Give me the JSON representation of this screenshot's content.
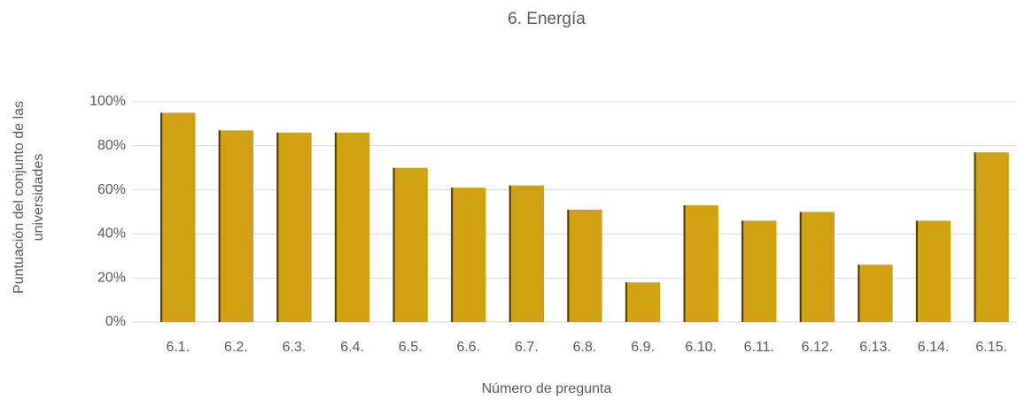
{
  "chart_data": {
    "type": "bar",
    "title": "6. Energía",
    "x_label": "Número de pregunta",
    "y_label": "Puntuación del conjunto de las universidades",
    "categories": [
      "6.1.",
      "6.2.",
      "6.3.",
      "6.4.",
      "6.5.",
      "6.6.",
      "6.7.",
      "6.8.",
      "6.9.",
      "6.10.",
      "6.11.",
      "6.12.",
      "6.13.",
      "6.14.",
      "6.15."
    ],
    "values": [
      95,
      87,
      86,
      86,
      70,
      61,
      62,
      51,
      18,
      53,
      46,
      50,
      26,
      46,
      77
    ],
    "color": "#d1a114",
    "ylim": [
      0,
      100
    ],
    "yticks": [
      {
        "value": 0,
        "label": "0%"
      },
      {
        "value": 20,
        "label": "20%"
      },
      {
        "value": 40,
        "label": "40%"
      },
      {
        "value": 60,
        "label": "60%"
      },
      {
        "value": 80,
        "label": "80%"
      },
      {
        "value": 100,
        "label": "100%"
      }
    ],
    "grid": true
  }
}
